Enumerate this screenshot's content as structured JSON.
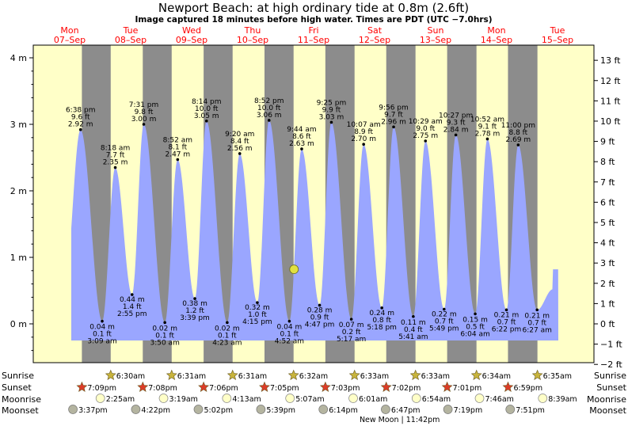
{
  "chart_data": {
    "type": "area",
    "title": "Newport Beach: at high  ordinary tide at 0.8m (2.6ft)",
    "subtitle": "Image captured 18 minutes before high water. Times are PDT (UTC −7.0hrs)",
    "ylim_m": [
      -0.55,
      4.15
    ],
    "left_ticks": [
      "4 m",
      "3 m",
      "2 m",
      "1 m",
      "0 m"
    ],
    "left_tick_values": [
      4,
      3,
      2,
      1,
      0
    ],
    "right_ticks": [
      "13 ft",
      "12 ft",
      "11 ft",
      "10 ft",
      "9 ft",
      "8 ft",
      "7 ft",
      "6 ft",
      "5 ft",
      "4 ft",
      "3 ft",
      "2 ft",
      "1 ft",
      "0 ft",
      "−1 ft",
      "−2 ft"
    ],
    "right_tick_values_ft": [
      13,
      12,
      11,
      10,
      9,
      8,
      7,
      6,
      5,
      4,
      3,
      2,
      1,
      0,
      -1,
      -2
    ],
    "days": [
      {
        "dow": "Mon",
        "date": "07–Sep"
      },
      {
        "dow": "Tue",
        "date": "08–Sep"
      },
      {
        "dow": "Wed",
        "date": "09–Sep"
      },
      {
        "dow": "Thu",
        "date": "10–Sep"
      },
      {
        "dow": "Fri",
        "date": "11–Sep"
      },
      {
        "dow": "Sat",
        "date": "12–Sep"
      },
      {
        "dow": "Sun",
        "date": "13–Sep"
      },
      {
        "dow": "Mon",
        "date": "14–Sep"
      },
      {
        "dow": "Tue",
        "date": "15–Sep"
      }
    ],
    "major_highs": [
      {
        "time": "6:38 pm",
        "ft": "9.6 ft",
        "m": "2.92 m",
        "hour": 18.63,
        "value": 2.92
      },
      {
        "time": "7:31 pm",
        "ft": "9.8 ft",
        "m": "3.00 m",
        "hour": 43.52,
        "value": 3.0
      },
      {
        "time": "8:14 pm",
        "ft": "10.0 ft",
        "m": "3.05 m",
        "hour": 68.23,
        "value": 3.05
      },
      {
        "time": "8:52 pm",
        "ft": "10.0 ft",
        "m": "3.06 m",
        "hour": 92.87,
        "value": 3.06
      },
      {
        "time": "9:25 pm",
        "ft": "9.9 ft",
        "m": "3.03 m",
        "hour": 117.42,
        "value": 3.03
      },
      {
        "time": "9:56 pm",
        "ft": "9.7 ft",
        "m": "2.96 m",
        "hour": 141.93,
        "value": 2.96
      },
      {
        "time": "10:27 pm",
        "ft": "9.3 ft",
        "m": "2.84 m",
        "hour": 166.45,
        "value": 2.84
      },
      {
        "time": "11:00 pm",
        "ft": "8.8 ft",
        "m": "2.69 m",
        "hour": 191.0,
        "value": 2.69
      }
    ],
    "minor_highs": [
      {
        "time": "8:18 am",
        "ft": "7.7 ft",
        "m": "2.35 m",
        "hour": 32.3,
        "value": 2.35
      },
      {
        "time": "8:52 am",
        "ft": "8.1 ft",
        "m": "2.47 m",
        "hour": 56.87,
        "value": 2.47
      },
      {
        "time": "9:20 am",
        "ft": "8.4 ft",
        "m": "2.56 m",
        "hour": 81.33,
        "value": 2.56
      },
      {
        "time": "9:44 am",
        "ft": "8.6 ft",
        "m": "2.63 m",
        "hour": 105.73,
        "value": 2.63
      },
      {
        "time": "10:07 am",
        "ft": "8.9 ft",
        "m": "2.70 m",
        "hour": 130.12,
        "value": 2.7
      },
      {
        "time": "10:29 am",
        "ft": "9.0 ft",
        "m": "2.75 m",
        "hour": 154.48,
        "value": 2.75
      },
      {
        "time": "10:52 am",
        "ft": "9.1 ft",
        "m": "2.78 m",
        "hour": 178.87,
        "value": 2.78
      }
    ],
    "major_lows": [
      {
        "time": "3:09 am",
        "ft": "0.1 ft",
        "m": "0.04 m",
        "hour": 27.15,
        "value": 0.04
      },
      {
        "time": "3:50 am",
        "ft": "0.1 ft",
        "m": "0.02 m",
        "hour": 51.83,
        "value": 0.02
      },
      {
        "time": "4:23 am",
        "ft": "0.1 ft",
        "m": "0.02 m",
        "hour": 76.38,
        "value": 0.02
      },
      {
        "time": "4:52 am",
        "ft": "0.1 ft",
        "m": "0.04 m",
        "hour": 100.87,
        "value": 0.04
      },
      {
        "time": "5:17 am",
        "ft": "0.2 ft",
        "m": "0.07 m",
        "hour": 125.28,
        "value": 0.07
      },
      {
        "time": "5:41 am",
        "ft": "0.4 ft",
        "m": "0.11 m",
        "hour": 149.68,
        "value": 0.11
      },
      {
        "time": "6:04 am",
        "ft": "0.5 ft",
        "m": "0.15 m",
        "hour": 174.07,
        "value": 0.15
      },
      {
        "time": "6:27 am",
        "ft": "0.7 ft",
        "m": "0.21 m",
        "hour": 198.45,
        "value": 0.21
      }
    ],
    "minor_lows": [
      {
        "time": "2:55 pm",
        "ft": "1.4 ft",
        "m": "0.44 m",
        "hour": 38.92,
        "value": 0.44
      },
      {
        "time": "3:39 pm",
        "ft": "1.2 ft",
        "m": "0.38 m",
        "hour": 63.65,
        "value": 0.38
      },
      {
        "time": "4:15 pm",
        "ft": "1.0 ft",
        "m": "0.32 m",
        "hour": 88.25,
        "value": 0.32
      },
      {
        "time": "4:47 pm",
        "ft": "0.9 ft",
        "m": "0.28 m",
        "hour": 112.78,
        "value": 0.28
      },
      {
        "time": "5:18 pm",
        "ft": "0.8 ft",
        "m": "0.24 m",
        "hour": 137.3,
        "value": 0.24
      },
      {
        "time": "5:49 pm",
        "ft": "0.7 ft",
        "m": "0.22 m",
        "hour": 161.82,
        "value": 0.22
      },
      {
        "time": "6:22 pm",
        "ft": "0.7 ft",
        "m": "0.21 m",
        "hour": 186.37,
        "value": 0.21
      }
    ],
    "current_marker": {
      "hour": 102.7,
      "value": 0.82
    },
    "row_labels": {
      "sunrise": "Sunrise",
      "sunset": "Sunset",
      "moonrise": "Moonrise",
      "moonset": "Moonset"
    },
    "sunrise": [
      {
        "time": "6:30am",
        "hour": 30.5
      },
      {
        "time": "6:31am",
        "hour": 54.52
      },
      {
        "time": "6:31am",
        "hour": 78.52
      },
      {
        "time": "6:32am",
        "hour": 102.53
      },
      {
        "time": "6:33am",
        "hour": 126.55
      },
      {
        "time": "6:33am",
        "hour": 150.55
      },
      {
        "time": "6:34am",
        "hour": 174.57
      },
      {
        "time": "6:35am",
        "hour": 198.58
      }
    ],
    "sunset": [
      {
        "time": "7:09pm",
        "hour": 19.15
      },
      {
        "time": "7:08pm",
        "hour": 43.13
      },
      {
        "time": "7:06pm",
        "hour": 67.1
      },
      {
        "time": "7:05pm",
        "hour": 91.08
      },
      {
        "time": "7:03pm",
        "hour": 115.05
      },
      {
        "time": "7:02pm",
        "hour": 139.03
      },
      {
        "time": "7:01pm",
        "hour": 163.02
      },
      {
        "time": "6:59pm",
        "hour": 186.98
      }
    ],
    "moonrise": [
      {
        "time": "2:25am",
        "hour": 26.42
      },
      {
        "time": "3:19am",
        "hour": 51.32
      },
      {
        "time": "4:13am",
        "hour": 76.22
      },
      {
        "time": "5:07am",
        "hour": 101.12
      },
      {
        "time": "6:01am",
        "hour": 126.02
      },
      {
        "time": "6:54am",
        "hour": 150.9
      },
      {
        "time": "7:46am",
        "hour": 175.77
      },
      {
        "time": "8:39am",
        "hour": 200.65
      }
    ],
    "moonset": [
      {
        "time": "3:37pm",
        "hour": 15.62
      },
      {
        "time": "4:22pm",
        "hour": 40.37
      },
      {
        "time": "5:02pm",
        "hour": 65.03
      },
      {
        "time": "5:39pm",
        "hour": 89.65
      },
      {
        "time": "6:14pm",
        "hour": 114.23
      },
      {
        "time": "6:47pm",
        "hour": 138.78
      },
      {
        "time": "7:19pm",
        "hour": 163.32
      },
      {
        "time": "7:51pm",
        "hour": 187.85
      }
    ],
    "new_moon_label": "New Moon | 11:42pm",
    "new_moon_hour": 143.7,
    "colors": {
      "day": "#ffffc8",
      "night": "#8c8c8c",
      "tide_fill": "#9aa6ff",
      "header_red": "#ff0000",
      "marker": "#e0e040",
      "star_yellow": "#c8b43c",
      "star_red": "#dc3c28",
      "moonrise": "#ffffc8",
      "moonset": "#b4b4a0"
    }
  }
}
